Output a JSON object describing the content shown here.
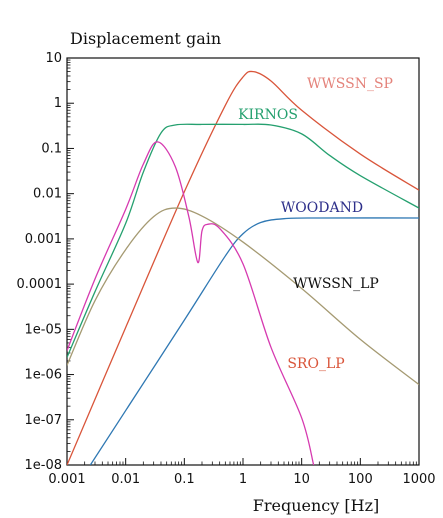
{
  "chart_data": {
    "type": "line",
    "title": "",
    "ylabel": "Displacement gain",
    "xlabel": "Frequency [Hz]",
    "xscale": "log",
    "yscale": "log",
    "xlim": [
      0.001,
      1000
    ],
    "ylim": [
      1e-08,
      10
    ],
    "grid": false,
    "x_ticks": [
      "0.001",
      "0.01",
      "0.1",
      "1",
      "10",
      "100",
      "1000"
    ],
    "y_ticks": [
      "1e-08",
      "1e-07",
      "1e-06",
      "1e-05",
      "0.0001",
      "0.001",
      "0.01",
      "0.1",
      "1",
      "10"
    ],
    "series": [
      {
        "name": "WWSSN_SP",
        "color": "#d9553a",
        "label_color": "#e4837b",
        "points": [
          [
            0.001,
            1e-08
          ],
          [
            0.01,
            1.1e-05
          ],
          [
            0.1,
            0.011
          ],
          [
            0.5,
            0.9
          ],
          [
            1,
            3.8
          ],
          [
            1.5,
            5
          ],
          [
            3,
            3.1
          ],
          [
            10,
            0.7
          ],
          [
            100,
            0.075
          ],
          [
            1000,
            0.012
          ]
        ]
      },
      {
        "name": "KIRNOS",
        "color": "#25a06f",
        "label_color": "#25a06f",
        "points": [
          [
            0.001,
            2.4e-06
          ],
          [
            0.003,
            6.8e-05
          ],
          [
            0.01,
            0.0022
          ],
          [
            0.02,
            0.03
          ],
          [
            0.04,
            0.22
          ],
          [
            0.07,
            0.33
          ],
          [
            0.2,
            0.34
          ],
          [
            1,
            0.34
          ],
          [
            3,
            0.33
          ],
          [
            10,
            0.21
          ],
          [
            30,
            0.07
          ],
          [
            100,
            0.025
          ],
          [
            1000,
            0.0048
          ]
        ]
      },
      {
        "name": "WOODAND",
        "color": "#2f78b3",
        "label_color": "#2d2f8a",
        "points": [
          [
            0.0025,
            1e-08
          ],
          [
            0.01,
            1.6e-07
          ],
          [
            0.1,
            1.6e-05
          ],
          [
            0.5,
            0.00042
          ],
          [
            1,
            0.0013
          ],
          [
            2,
            0.0023
          ],
          [
            5,
            0.0028
          ],
          [
            20,
            0.0029
          ],
          [
            1000,
            0.0029
          ]
        ]
      },
      {
        "name": "WWSSN_LP",
        "color": "#a59a72",
        "label_color": "#111111",
        "points": [
          [
            0.001,
            1.6e-06
          ],
          [
            0.003,
            4.3e-05
          ],
          [
            0.01,
            0.00058
          ],
          [
            0.03,
            0.0031
          ],
          [
            0.07,
            0.0048
          ],
          [
            0.2,
            0.0032
          ],
          [
            1,
            0.00085
          ],
          [
            10,
            8e-05
          ],
          [
            100,
            6e-06
          ],
          [
            1000,
            6e-07
          ]
        ]
      },
      {
        "name": "SRO_LP",
        "color": "#d63ab0",
        "label_color": "#d9553a",
        "points": [
          [
            0.001,
            3.4e-06
          ],
          [
            0.003,
            0.00013
          ],
          [
            0.01,
            0.0045
          ],
          [
            0.02,
            0.045
          ],
          [
            0.035,
            0.14
          ],
          [
            0.07,
            0.04
          ],
          [
            0.12,
            0.003
          ],
          [
            0.17,
            0.0003
          ],
          [
            0.2,
            0.0015
          ],
          [
            0.25,
            0.0021
          ],
          [
            0.4,
            0.0017
          ],
          [
            1,
            0.00028
          ],
          [
            3,
            4e-06
          ],
          [
            10,
            1.1e-07
          ],
          [
            16,
            1e-08
          ]
        ]
      }
    ]
  }
}
